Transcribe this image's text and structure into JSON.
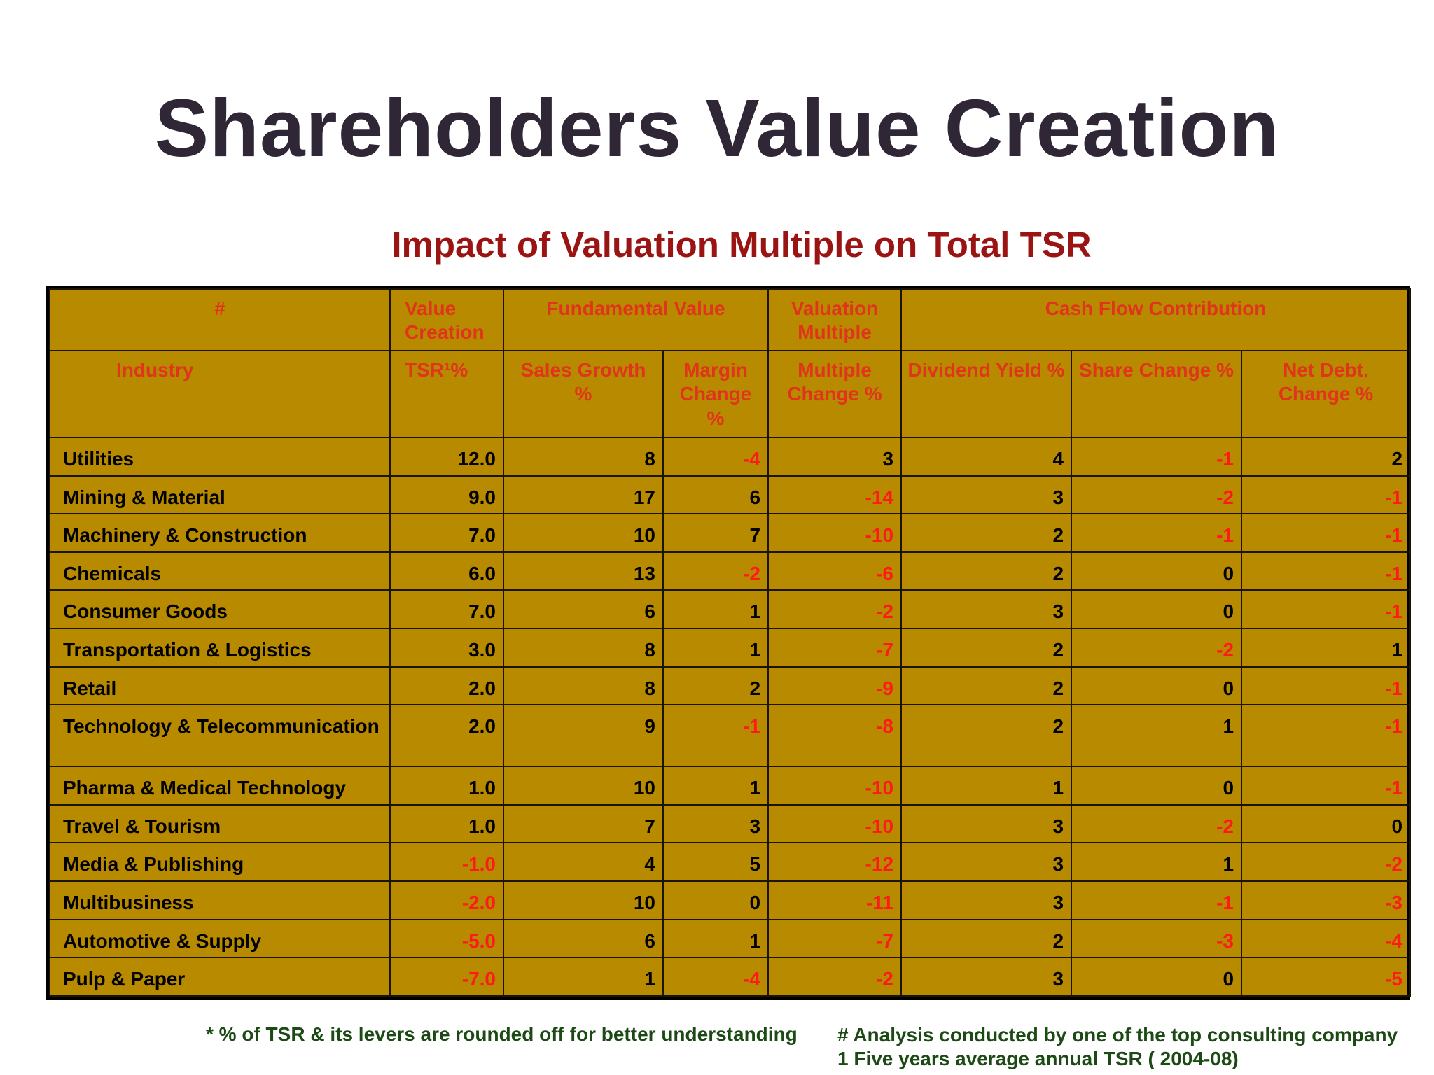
{
  "title": "Shareholders Value Creation",
  "subtitle": "Impact of Valuation Multiple on Total TSR",
  "header_row1": {
    "hash": "#",
    "value_creation": "Value Creation",
    "fundamental_value": "Fundamental Value",
    "valuation_multiple": "Valuation Multiple",
    "cash_flow": "Cash Flow Contribution"
  },
  "header_row2": {
    "industry": "Industry",
    "tsr": "TSR¹%",
    "sales_growth": "Sales Growth %",
    "margin_change": "Margin Change %",
    "multiple_change": "Multiple Change %",
    "dividend_yield": "Dividend Yield %",
    "share_change": "Share Change %",
    "net_debt_change": "Net Debt. Change %"
  },
  "rows": [
    [
      "Utilities",
      "12.0",
      "8",
      "-4",
      "3",
      "4",
      "-1",
      "2"
    ],
    [
      "Mining & Material",
      "9.0",
      "17",
      "6",
      "-14",
      "3",
      "-2",
      "-1"
    ],
    [
      "Machinery & Construction",
      "7.0",
      "10",
      "7",
      "-10",
      "2",
      "-1",
      "-1"
    ],
    [
      "Chemicals",
      "6.0",
      "13",
      "-2",
      "-6",
      "2",
      "0",
      "-1"
    ],
    [
      "Consumer Goods",
      "7.0",
      "6",
      "1",
      "-2",
      "3",
      "0",
      "-1"
    ],
    [
      "Transportation & Logistics",
      "3.0",
      "8",
      "1",
      "-7",
      "2",
      "-2",
      "1"
    ],
    [
      "Retail",
      "2.0",
      "8",
      "2",
      "-9",
      "2",
      "0",
      "-1"
    ],
    [
      "Technology & Telecommunication",
      "2.0",
      "9",
      "-1",
      "-8",
      "2",
      "1",
      "-1"
    ],
    [
      "Pharma  & Medical Technology",
      "1.0",
      "10",
      "1",
      "-10",
      "1",
      "0",
      "-1"
    ],
    [
      "Travel & Tourism",
      "1.0",
      "7",
      "3",
      "-10",
      "3",
      "-2",
      "0"
    ],
    [
      "Media & Publishing",
      "-1.0",
      "4",
      "5",
      "-12",
      "3",
      "1",
      "-2"
    ],
    [
      "Multibusiness",
      "-2.0",
      "10",
      "0",
      "-11",
      "3",
      "-1",
      "-3"
    ],
    [
      "Automotive & Supply",
      "-5.0",
      "6",
      "1",
      "-7",
      "2",
      "-3",
      "-4"
    ],
    [
      "Pulp & Paper",
      "-7.0",
      "1",
      "-4",
      "-2",
      "3",
      "0",
      "-5"
    ]
  ],
  "footnotes": {
    "rounding": "* % of TSR & its levers are rounded off for better understanding",
    "analysis": "# Analysis conducted by one of the top consulting company",
    "tsr_note": "1 Five years average annual TSR ( 2004-08)"
  },
  "colors": {
    "title": "#2f2636",
    "subtitle": "#9b1414",
    "table_bg": "#b88a00",
    "header_text": "#e0341c",
    "negative": "#ff1a1a",
    "footnote": "#1c4a14"
  }
}
